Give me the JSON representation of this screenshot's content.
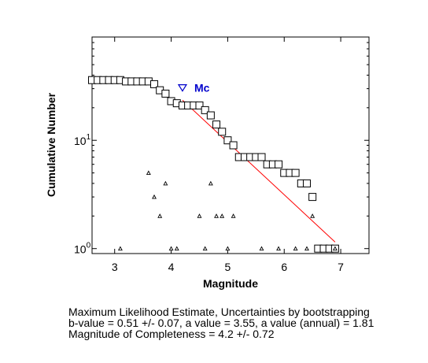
{
  "chart_data": {
    "type": "scatter",
    "xlabel": "Magnitude",
    "ylabel": "Cumulative Number",
    "xlim": [
      2.6,
      7.5
    ],
    "ylim": [
      0.9,
      90
    ],
    "y_scale": "log",
    "x_ticks": [
      "3",
      "4",
      "5",
      "6",
      "7"
    ],
    "y_ticks": [
      {
        "base": "10",
        "exp": "1"
      },
      {
        "base": "10",
        "exp": "0"
      }
    ],
    "grid": false,
    "series": [
      {
        "marker": "square",
        "x": [
          2.6,
          2.7,
          2.8,
          2.9,
          3.0,
          3.1,
          3.2,
          3.3,
          3.4,
          3.5,
          3.6,
          3.7,
          3.8,
          3.9,
          4.0,
          4.1,
          4.2,
          4.3,
          4.4,
          4.5,
          4.6,
          4.7,
          4.8,
          4.9,
          5.0,
          5.1,
          5.2,
          5.3,
          5.4,
          5.5,
          5.6,
          5.7,
          5.8,
          5.9,
          6.0,
          6.1,
          6.2,
          6.3,
          6.4,
          6.5,
          6.6,
          6.7,
          6.8,
          6.9
        ],
        "y": [
          36,
          36,
          36,
          36,
          36,
          36,
          35,
          35,
          35,
          35,
          35,
          33,
          29,
          27,
          23,
          22,
          21,
          21,
          21,
          21,
          19,
          17,
          14,
          12,
          10,
          9,
          7,
          7,
          7,
          7,
          7,
          6,
          6,
          6,
          5,
          5,
          5,
          4,
          4,
          3,
          1,
          1,
          1,
          1
        ]
      },
      {
        "marker": "triangle",
        "x": [
          3.1,
          3.6,
          3.7,
          3.8,
          3.9,
          4.0,
          4.1,
          4.5,
          4.6,
          4.7,
          4.8,
          4.9,
          5.0,
          5.1,
          5.6,
          5.9,
          6.2,
          6.4,
          6.5,
          6.9
        ],
        "y": [
          1,
          5,
          3,
          2,
          4,
          1,
          1,
          2,
          1,
          4,
          2,
          2,
          1,
          2,
          1,
          1,
          1,
          1,
          2,
          1
        ]
      },
      {
        "type": "line",
        "color": "#ff0000",
        "x": [
          4.2,
          6.9
        ],
        "y": [
          23.5,
          1.15
        ]
      }
    ],
    "annotations": [
      {
        "text": "Mc",
        "marker": "inverted-triangle",
        "x": 4.2,
        "y": 30.5,
        "color": "#0000cc"
      }
    ]
  },
  "caption": {
    "line1": "Maximum Likelihood Estimate, Uncertainties by bootstrapping",
    "line2": "b-value = 0.51 +/- 0.07,  a value = 3.55,  a value (annual) = 1.81",
    "line3": "Magnitude of Completeness = 4.2 +/- 0.72"
  }
}
